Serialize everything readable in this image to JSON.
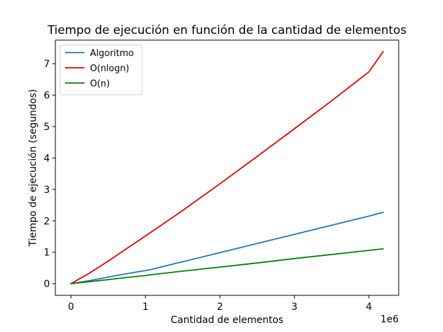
{
  "chart_data": {
    "type": "line",
    "title": "Tiempo de ejecución en función de la cantidad de elementos",
    "xlabel": "Cantidad de elementos",
    "ylabel": "Tiempo de ejecución (segundos)",
    "x_offset_label": "1e6",
    "xlim": [
      -0.21,
      4.4
    ],
    "ylim": [
      -0.37,
      7.75
    ],
    "x_ticks": [
      0,
      1,
      2,
      3,
      4
    ],
    "y_ticks": [
      0,
      1,
      2,
      3,
      4,
      5,
      6,
      7
    ],
    "grid": false,
    "legend_position": "top-left",
    "x": [
      0,
      0.25,
      0.5,
      0.75,
      1.0,
      1.05,
      1.5,
      2.0,
      2.5,
      3.0,
      3.5,
      4.0,
      4.19
    ],
    "series": [
      {
        "name": "Algoritmo",
        "color": "#1f77b4",
        "values": [
          0,
          0.1,
          0.21,
          0.32,
          0.42,
          0.44,
          0.7,
          0.99,
          1.28,
          1.57,
          1.86,
          2.15,
          2.27
        ]
      },
      {
        "name": "O(nlogn)",
        "color": "#e00000",
        "values": [
          0,
          0.34,
          0.72,
          1.12,
          1.52,
          1.6,
          2.33,
          3.18,
          4.05,
          4.93,
          5.82,
          6.74,
          7.38
        ]
      },
      {
        "name": "O(n)",
        "color": "#008000",
        "values": [
          0,
          0.066,
          0.13,
          0.2,
          0.26,
          0.28,
          0.4,
          0.53,
          0.66,
          0.8,
          0.93,
          1.06,
          1.11
        ]
      }
    ]
  }
}
